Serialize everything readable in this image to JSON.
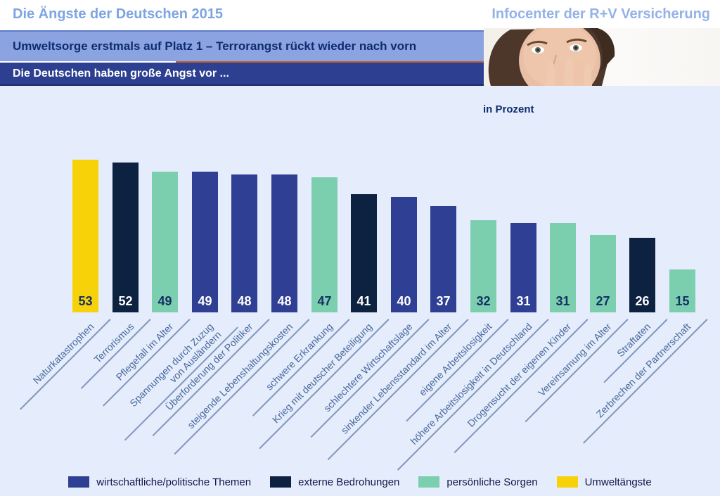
{
  "header": {
    "title": "Die Ängste der Deutschen 2015",
    "brand": "Infocenter der R+V Versicherung",
    "headline": "Umweltsorge erstmals auf Platz 1 – Terrorangst rückt wieder nach vorn",
    "subheadline": "Die Deutschen haben große Angst vor ..."
  },
  "chart_data": {
    "type": "bar",
    "title": "Die Ängste der Deutschen 2015",
    "unit_label": "in Prozent",
    "ylim": [
      0,
      60
    ],
    "legend_position": "bottom",
    "grid": false,
    "background": "#e5ecfb",
    "label_color": "#47699c",
    "groups": {
      "economic": {
        "label": "wirtschaftliche/politische Themen",
        "color": "#2f3f94",
        "value_color": "#ffffff"
      },
      "external": {
        "label": "externe Bedrohungen",
        "color": "#0d2140",
        "value_color": "#ffffff"
      },
      "personal": {
        "label": "persönliche Sorgen",
        "color": "#7bcfae",
        "value_color": "#143066"
      },
      "environment": {
        "label": "Umweltängste",
        "color": "#f7d208",
        "value_color": "#143066"
      }
    },
    "legend_order": [
      "economic",
      "external",
      "personal",
      "environment"
    ],
    "items": [
      {
        "label": "Naturkatastrophen",
        "value": 53,
        "group": "environment"
      },
      {
        "label": "Terrorismus",
        "value": 52,
        "group": "external"
      },
      {
        "label": "Pflegefall im Alter",
        "value": 49,
        "group": "personal"
      },
      {
        "label": "Spannungen durch Zuzug von Ausländern",
        "lines": [
          "Spannungen durch Zuzug",
          "von Ausländern"
        ],
        "value": 49,
        "group": "economic"
      },
      {
        "label": "Überforderung der Politiker",
        "value": 48,
        "group": "economic"
      },
      {
        "label": "steigende Lebenshaltungskosten",
        "value": 48,
        "group": "economic"
      },
      {
        "label": "schwere Erkrankung",
        "value": 47,
        "group": "personal"
      },
      {
        "label": "Krieg mit deutscher Beteiligung",
        "value": 41,
        "group": "external"
      },
      {
        "label": "schlechtere Wirtschaftslage",
        "value": 40,
        "group": "economic"
      },
      {
        "label": "sinkender Lebensstandard im Alter",
        "value": 37,
        "group": "economic"
      },
      {
        "label": "eigene Arbeitslosigkeit",
        "value": 32,
        "group": "personal"
      },
      {
        "label": "höhere Arbeitslosigkeit in Deutschland",
        "value": 31,
        "group": "economic"
      },
      {
        "label": "Drogensucht der eigenen Kinder",
        "value": 31,
        "group": "personal"
      },
      {
        "label": "Vereinsamung im Alter",
        "value": 27,
        "group": "personal"
      },
      {
        "label": "Straftaten",
        "value": 26,
        "group": "external"
      },
      {
        "label": "Zerbrechen der Partnerschaft",
        "value": 15,
        "group": "personal"
      }
    ]
  }
}
